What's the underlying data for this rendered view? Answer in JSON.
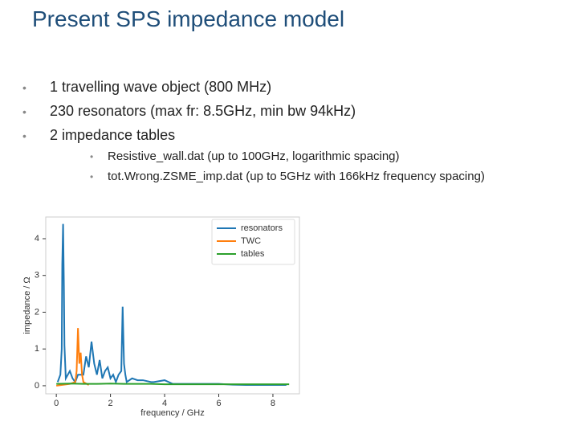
{
  "title": "Present SPS impedance model",
  "bullets": [
    "1 travelling wave object (800 MHz)",
    "230 resonators (max fr: 8.5GHz, min bw 94kHz)",
    "2 impedance tables"
  ],
  "sub_bullets": [
    "Resistive_wall.dat (up to 100GHz, logarithmic spacing)",
    "tot.Wrong.ZSME_imp.dat (up to 5GHz with 166kHz frequency spacing)"
  ],
  "chart_data": {
    "type": "line",
    "x_label": "frequency / GHz",
    "y_label": "impedance / Ω",
    "xlim": [
      -0.39,
      8.98
    ],
    "ylim": [
      -0.22,
      4.59
    ],
    "xticks": [
      0,
      2,
      4,
      6,
      8
    ],
    "yticks": [
      0,
      1,
      2,
      3,
      4
    ],
    "grid": false,
    "legend": "upper right",
    "series": [
      {
        "name": "resonators",
        "color": "#1f77b4",
        "x": [
          0.05,
          0.15,
          0.2,
          0.22,
          0.25,
          0.28,
          0.3,
          0.35,
          0.5,
          0.6,
          0.7,
          0.8,
          1.0,
          1.1,
          1.2,
          1.3,
          1.4,
          1.5,
          1.6,
          1.7,
          1.8,
          1.9,
          2.0,
          2.1,
          2.2,
          2.3,
          2.4,
          2.45,
          2.5,
          2.55,
          2.6,
          2.8,
          3.0,
          3.2,
          3.5,
          3.6,
          4.0,
          4.3,
          4.6,
          5.0,
          5.5,
          6.0,
          6.5,
          7.0,
          7.5,
          8.0,
          8.5
        ],
        "values": [
          0.1,
          0.3,
          1.0,
          3.3,
          4.4,
          2.7,
          1.1,
          0.2,
          0.4,
          0.2,
          0.1,
          0.3,
          0.3,
          0.8,
          0.5,
          1.2,
          0.6,
          0.3,
          0.7,
          0.2,
          0.4,
          0.5,
          0.2,
          0.3,
          0.1,
          0.3,
          0.4,
          2.15,
          0.6,
          0.3,
          0.1,
          0.2,
          0.15,
          0.15,
          0.1,
          0.1,
          0.15,
          0.05,
          0.05,
          0.05,
          0.05,
          0.05,
          0.03,
          0.02,
          0.02,
          0.02,
          0.02
        ]
      },
      {
        "name": "TWC",
        "color": "#ff7f0e",
        "x": [
          0,
          0.5,
          0.7,
          0.75,
          0.8,
          0.85,
          0.9,
          0.95,
          1.0,
          1.2
        ],
        "values": [
          0,
          0.05,
          0.1,
          0.4,
          1.57,
          0.6,
          0.9,
          0.3,
          0.1,
          0.02
        ]
      },
      {
        "name": "tables",
        "color": "#2ca02c",
        "x": [
          0,
          0.5,
          1,
          1.5,
          2,
          2.5,
          3,
          3.5,
          4,
          4.5,
          5,
          5.5,
          6,
          6.5,
          7,
          7.5,
          8,
          8.6
        ],
        "values": [
          0.05,
          0.06,
          0.05,
          0.05,
          0.06,
          0.05,
          0.05,
          0.05,
          0.04,
          0.04,
          0.04,
          0.04,
          0.04,
          0.04,
          0.04,
          0.04,
          0.04,
          0.04
        ]
      }
    ]
  }
}
